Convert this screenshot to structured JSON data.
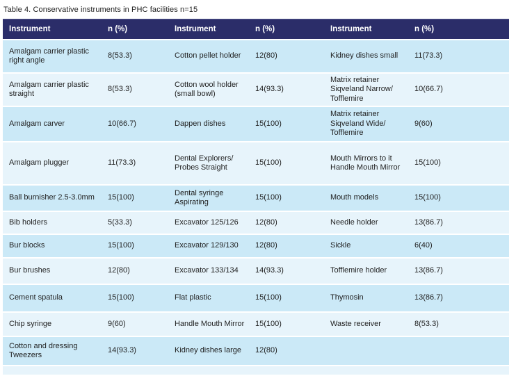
{
  "caption": "Table 4. Conservative instruments in PHC facilities n=15",
  "colors": {
    "header_bg": "#2b2d69",
    "row_odd": "#cbe9f7",
    "row_even": "#e7f4fb",
    "header_text": "#ffffff",
    "body_text": "#1f1f1f"
  },
  "table": {
    "headers": [
      "Instrument",
      "n (%)",
      "Instrument",
      "n (%)",
      "Instrument",
      "n (%)"
    ],
    "rows": [
      [
        "Amalgam carrier plastic right angle",
        "8(53.3)",
        "Cotton pellet holder",
        "12(80)",
        "Kidney dishes small",
        "11(73.3)"
      ],
      [
        "Amalgam carrier plastic straight",
        "8(53.3)",
        "Cotton wool holder (small bowl)",
        "14(93.3)",
        "Matrix retainer Siqveland Narrow/ Tofflemire",
        "10(66.7)"
      ],
      [
        "Amalgam carver",
        "10(66.7)",
        "Dappen dishes",
        "15(100)",
        "Matrix retainer Siqveland Wide/ Tofflemire",
        "9(60)"
      ],
      [
        "Amalgam plugger",
        "11(73.3)",
        "Dental Explorers/ Probes Straight",
        "15(100)",
        "Mouth Mirrors to it Handle Mouth Mirror",
        "15(100)"
      ],
      [
        "Ball burnisher 2.5-3.0mm",
        "15(100)",
        "Dental syringe Aspirating",
        "15(100)",
        "Mouth models",
        "15(100)"
      ],
      [
        "Bib holders",
        "5(33.3)",
        "Excavator 125/126",
        "12(80)",
        "Needle holder",
        "13(86.7)"
      ],
      [
        "Bur blocks",
        "15(100)",
        "Excavator 129/130",
        "12(80)",
        "Sickle",
        "6(40)"
      ],
      [
        "Bur brushes",
        "12(80)",
        "Excavator 133/134",
        "14(93.3)",
        "Tofflemire holder",
        "13(86.7)"
      ],
      [
        "Cement spatula",
        "15(100)",
        "Flat plastic",
        "15(100)",
        "Thymosin",
        "13(86.7)"
      ],
      [
        "Chip syringe",
        "9(60)",
        "Handle Mouth Mirror",
        "15(100)",
        "Waste receiver",
        "8(53.3)"
      ],
      [
        "Cotton and dressing Tweezers",
        "14(93.3)",
        "Kidney dishes large",
        "12(80)",
        "",
        ""
      ],
      [
        "",
        "",
        "",
        "",
        "",
        ""
      ]
    ]
  }
}
